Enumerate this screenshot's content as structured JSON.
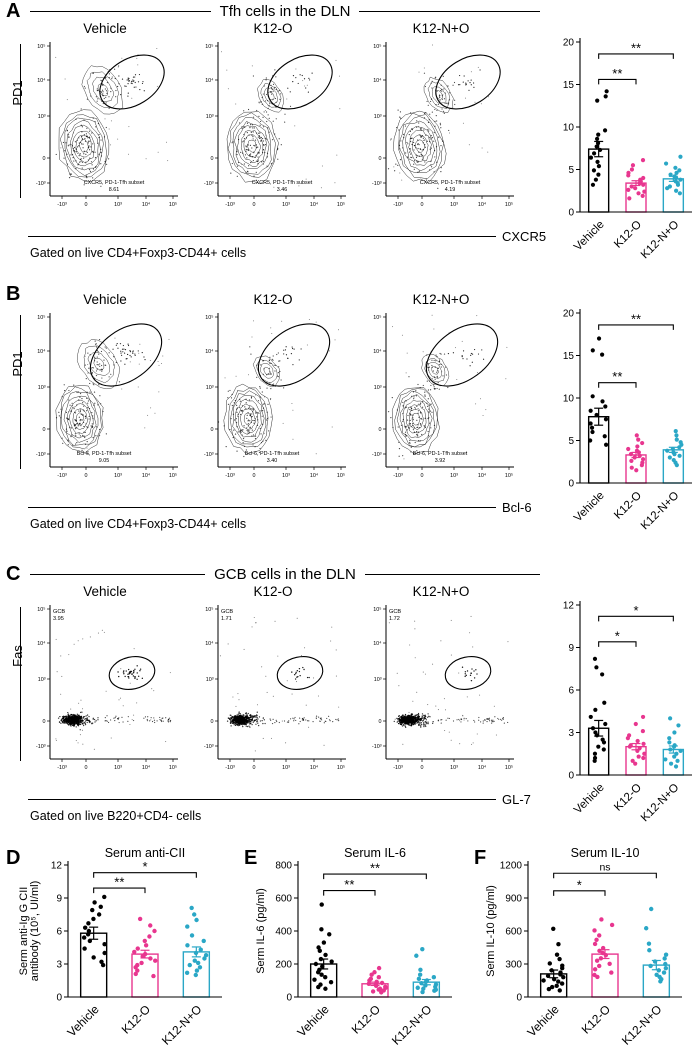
{
  "colors": {
    "vehicle": "#000000",
    "k12_o": "#e8368f",
    "k12_no": "#2aa7c6"
  },
  "groups": [
    "Vehicle",
    "K12-O",
    "K12-N+O"
  ],
  "flow_ticks": {
    "y": [
      "10⁵",
      "10⁴",
      "10³",
      "0",
      "-10³"
    ],
    "x": [
      "-10³",
      "0",
      "10³",
      "10⁴",
      "10⁵"
    ]
  },
  "panels": {
    "A": {
      "label": "A",
      "title": "Tfh cells in the DLN",
      "plot_titles": [
        "Vehicle",
        "K12-O",
        "K12-N+O"
      ],
      "y_marker": "PD1",
      "x_marker": "CXCR5",
      "gate_label": "CXCR5, PD-1-Tfh subset",
      "gate_values": [
        "8.61",
        "3.46",
        "4.19"
      ],
      "gating_note": "Gated on live CD4+Foxp3-CD44+ cells"
    },
    "B": {
      "label": "B",
      "plot_titles": [
        "Vehicle",
        "K12-O",
        "K12-N+O"
      ],
      "y_marker": "PD1",
      "x_marker": "Bcl-6",
      "gate_label": "Bcl-6, PD-1-Tfh subset",
      "gate_values": [
        "9.05",
        "3.40",
        "3.92"
      ],
      "gating_note": "Gated on live CD4+Foxp3-CD44+ cells"
    },
    "C": {
      "label": "C",
      "title": "GCB cells in the DLN",
      "plot_titles": [
        "Vehicle",
        "K12-O",
        "K12-N+O"
      ],
      "y_marker": "Fas",
      "x_marker": "GL-7",
      "gate_label": "GCB",
      "gate_values": [
        "3.95",
        "1.71",
        "1.72"
      ],
      "gating_note": "Gated on live B220+CD4- cells"
    },
    "D": {
      "label": "D",
      "title": "Serum anti-CII",
      "ylabel_lines": [
        "Serm anti-Ig G CII",
        "antibody (10⁵, UI/ml)"
      ]
    },
    "E": {
      "label": "E",
      "title": "Serum IL-6",
      "ylabel_lines": [
        "Serm IL-6 (pg/ml)"
      ]
    },
    "F": {
      "label": "F",
      "title": "Serum IL-10",
      "ylabel_lines": [
        "Serm IL-10 (pg/ml)"
      ]
    }
  },
  "chart_data": [
    {
      "id": "A",
      "type": "bar",
      "title": "",
      "xlabel": "",
      "ylabel": "",
      "categories": [
        "Vehicle",
        "K12-O",
        "K12-N+O"
      ],
      "values": [
        7.4,
        3.4,
        3.9
      ],
      "errors": [
        0.9,
        0.28,
        0.3
      ],
      "points": [
        [
          14.2,
          13.6,
          13.1,
          9.6,
          9.1,
          8.6,
          8.1,
          7.7,
          7.3,
          6.9,
          6.4,
          5.9,
          5.4,
          4.9,
          4.4,
          3.8,
          3.2
        ],
        [
          6.1,
          5.5,
          5.0,
          4.6,
          4.3,
          4.0,
          3.8,
          3.6,
          3.4,
          3.2,
          3.0,
          2.8,
          2.6,
          2.4,
          2.2,
          1.9,
          1.6
        ],
        [
          6.5,
          5.7,
          5.2,
          4.9,
          4.6,
          4.4,
          4.2,
          4.0,
          3.8,
          3.6,
          3.4,
          3.2,
          3.0,
          2.8,
          2.5,
          2.2
        ]
      ],
      "ylim": [
        0,
        20
      ],
      "yticks": [
        0,
        5,
        10,
        15,
        20
      ],
      "significance": [
        {
          "groups": [
            0,
            2
          ],
          "label": "**",
          "y": 18.6
        },
        {
          "groups": [
            0,
            1
          ],
          "label": "**",
          "y": 15.6
        }
      ]
    },
    {
      "id": "B",
      "type": "bar",
      "title": "",
      "xlabel": "",
      "ylabel": "",
      "categories": [
        "Vehicle",
        "K12-O",
        "K12-N+O"
      ],
      "values": [
        7.8,
        3.3,
        3.9
      ],
      "errors": [
        1.0,
        0.3,
        0.3
      ],
      "points": [
        [
          17.0,
          15.6,
          15.1,
          10.2,
          9.6,
          9.0,
          8.5,
          8.0,
          7.5,
          7.0,
          6.5,
          6.0,
          5.5,
          5.0,
          4.5
        ],
        [
          5.6,
          5.1,
          4.7,
          4.3,
          4.0,
          3.8,
          3.6,
          3.4,
          3.2,
          3.0,
          2.8,
          2.6,
          2.4,
          2.1,
          1.8,
          1.5
        ],
        [
          6.1,
          5.6,
          5.1,
          4.8,
          4.5,
          4.2,
          4.0,
          3.8,
          3.6,
          3.4,
          3.2,
          3.0,
          2.7,
          2.4,
          2.1
        ]
      ],
      "ylim": [
        0,
        20
      ],
      "yticks": [
        0,
        5,
        10,
        15,
        20
      ],
      "significance": [
        {
          "groups": [
            0,
            2
          ],
          "label": "**",
          "y": 18.6
        },
        {
          "groups": [
            0,
            1
          ],
          "label": "**",
          "y": 11.8
        }
      ]
    },
    {
      "id": "C",
      "type": "bar",
      "title": "",
      "xlabel": "",
      "ylabel": "",
      "categories": [
        "Vehicle",
        "K12-O",
        "K12-N+O"
      ],
      "values": [
        3.3,
        2.0,
        1.8
      ],
      "errors": [
        0.55,
        0.22,
        0.25
      ],
      "points": [
        [
          8.2,
          7.6,
          7.1,
          5.1,
          4.6,
          4.1,
          3.6,
          3.3,
          3.0,
          2.8,
          2.5,
          2.3,
          2.0,
          1.8,
          1.5,
          1.2,
          1.0
        ],
        [
          4.1,
          3.6,
          3.1,
          2.8,
          2.6,
          2.4,
          2.2,
          2.1,
          2.0,
          1.9,
          1.7,
          1.5,
          1.3,
          1.2,
          1.0,
          0.8
        ],
        [
          4.0,
          3.5,
          3.0,
          2.6,
          2.3,
          2.1,
          2.0,
          1.8,
          1.7,
          1.5,
          1.3,
          1.1,
          1.0,
          0.8,
          0.6
        ]
      ],
      "ylim": [
        0,
        12
      ],
      "yticks": [
        0,
        3,
        6,
        9,
        12
      ],
      "significance": [
        {
          "groups": [
            0,
            2
          ],
          "label": "*",
          "y": 11.2
        },
        {
          "groups": [
            0,
            1
          ],
          "label": "*",
          "y": 9.4
        }
      ]
    },
    {
      "id": "D",
      "type": "bar",
      "title": "Serum anti-CII",
      "xlabel": "",
      "ylabel": "Serm anti-Ig G CII antibody (10⁵, UI/ml)",
      "categories": [
        "Vehicle",
        "K12-O",
        "K12-N+O"
      ],
      "values": [
        5.8,
        3.9,
        4.1
      ],
      "errors": [
        0.55,
        0.35,
        0.45
      ],
      "points": [
        [
          9.1,
          8.6,
          8.2,
          7.9,
          7.5,
          7.1,
          6.7,
          6.3,
          6.0,
          5.7,
          5.4,
          5.1,
          4.8,
          4.4,
          4.0,
          3.6,
          3.2,
          2.9
        ],
        [
          7.1,
          6.5,
          6.0,
          5.5,
          5.1,
          4.7,
          4.4,
          4.1,
          3.9,
          3.7,
          3.5,
          3.3,
          3.1,
          2.9,
          2.7,
          2.4,
          2.1,
          1.9
        ],
        [
          8.1,
          7.5,
          7.0,
          6.4,
          5.6,
          5.1,
          4.7,
          4.3,
          4.0,
          3.8,
          3.5,
          3.3,
          3.1,
          2.9,
          2.7,
          2.4,
          2.2,
          2.0
        ]
      ],
      "ylim": [
        0,
        12
      ],
      "yticks": [
        0,
        3,
        6,
        9,
        12
      ],
      "significance": [
        {
          "groups": [
            0,
            2
          ],
          "label": "*",
          "y": 11.3
        },
        {
          "groups": [
            0,
            1
          ],
          "label": "**",
          "y": 9.9
        }
      ]
    },
    {
      "id": "E",
      "type": "bar",
      "title": "Serum IL-6",
      "xlabel": "",
      "ylabel": "Serm IL-6 (pg/ml)",
      "categories": [
        "Vehicle",
        "K12-O",
        "K12-N+O"
      ],
      "values": [
        200,
        80,
        90
      ],
      "errors": [
        30,
        10,
        16
      ],
      "points": [
        [
          560,
          410,
          380,
          330,
          300,
          280,
          255,
          230,
          215,
          200,
          185,
          165,
          150,
          135,
          120,
          105,
          90,
          75,
          60,
          50
        ],
        [
          175,
          150,
          135,
          120,
          110,
          100,
          92,
          85,
          80,
          74,
          68,
          62,
          56,
          50,
          45,
          40,
          34,
          28
        ],
        [
          290,
          250,
          165,
          135,
          120,
          110,
          100,
          92,
          84,
          76,
          70,
          62,
          56,
          50,
          44,
          38,
          30
        ]
      ],
      "ylim": [
        0,
        800
      ],
      "yticks": [
        0,
        200,
        400,
        600,
        800
      ],
      "significance": [
        {
          "groups": [
            0,
            2
          ],
          "label": "**",
          "y": 745
        },
        {
          "groups": [
            0,
            1
          ],
          "label": "**",
          "y": 645
        }
      ]
    },
    {
      "id": "F",
      "type": "bar",
      "title": "Serum IL-10",
      "xlabel": "",
      "ylabel": "Serm IL-10 (pg/ml)",
      "categories": [
        "Vehicle",
        "K12-O",
        "K12-N+O"
      ],
      "values": [
        210,
        390,
        290
      ],
      "errors": [
        35,
        40,
        42
      ],
      "points": [
        [
          620,
          480,
          385,
          345,
          305,
          285,
          262,
          242,
          222,
          205,
          192,
          180,
          162,
          150,
          140,
          122,
          102,
          90,
          72,
          60
        ],
        [
          705,
          655,
          605,
          560,
          520,
          482,
          445,
          420,
          400,
          380,
          352,
          330,
          302,
          282,
          252,
          222,
          200,
          182
        ],
        [
          800,
          625,
          485,
          425,
          385,
          350,
          322,
          300,
          282,
          262,
          242,
          222,
          202,
          182,
          162,
          142
        ]
      ],
      "ylim": [
        0,
        1200
      ],
      "yticks": [
        0,
        300,
        600,
        900,
        1200
      ],
      "significance": [
        {
          "groups": [
            0,
            2
          ],
          "label": "ns",
          "y": 1125
        },
        {
          "groups": [
            0,
            1
          ],
          "label": "*",
          "y": 965
        }
      ]
    }
  ]
}
